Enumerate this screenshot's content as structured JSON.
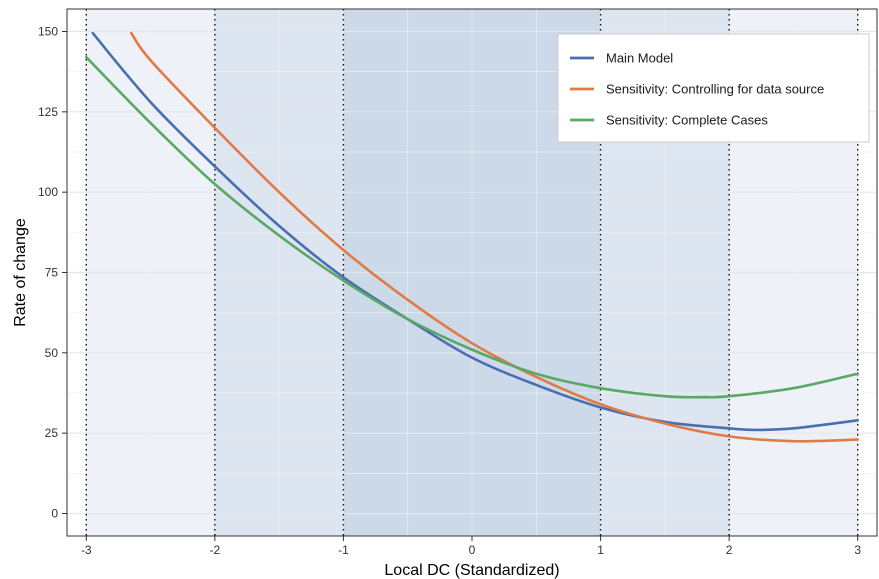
{
  "chart_data": {
    "type": "line",
    "title": "",
    "xlabel": "Local DC (Standardized)",
    "ylabel": "Rate of change",
    "xlim": [
      -3.15,
      3.15
    ],
    "ylim": [
      -7,
      157
    ],
    "x_ticks": [
      -3,
      -2,
      -1,
      0,
      1,
      2,
      3
    ],
    "x_tick_labels": [
      "-3",
      "-2",
      "-1",
      "0",
      "1",
      "2",
      "3"
    ],
    "y_ticks": [
      0,
      25,
      50,
      75,
      100,
      125,
      150
    ],
    "y_tick_labels": [
      "0",
      "25",
      "50",
      "75",
      "100",
      "125",
      "150"
    ],
    "grid": true,
    "legend_position": "top-right",
    "vertical_reference_lines": [
      -3,
      -2,
      -1,
      1,
      2,
      3
    ],
    "shaded_bands": [
      {
        "x": [
          -3,
          3
        ],
        "color": "#eef2f8"
      },
      {
        "x": [
          -2,
          2
        ],
        "color": "#dde5f0"
      },
      {
        "x": [
          -1,
          1
        ],
        "color": "#ccd9e8"
      }
    ],
    "series": [
      {
        "name": "Main Model",
        "color": "#4a6fb0",
        "x": [
          -2.95,
          -2.5,
          -2,
          -1.5,
          -1,
          -0.5,
          0,
          0.5,
          1,
          1.5,
          2,
          2.2,
          2.5,
          3
        ],
        "values": [
          149.5,
          128,
          108,
          89.5,
          73.5,
          60.5,
          48.5,
          40,
          33,
          28.5,
          26.5,
          26,
          26.5,
          29
        ]
      },
      {
        "name": "Sensitivity: Controlling for data source",
        "color": "#e07b45",
        "x": [
          -2.65,
          -2.5,
          -2,
          -1.5,
          -1,
          -0.5,
          0,
          0.5,
          1,
          1.5,
          2,
          2.5,
          3
        ],
        "values": [
          149.5,
          141,
          120,
          100,
          82,
          66.5,
          53,
          42.5,
          34,
          28,
          24,
          22.5,
          23
        ]
      },
      {
        "name": "Sensitivity: Complete Cases",
        "color": "#5aa866",
        "x": [
          -3,
          -2.5,
          -2,
          -1.5,
          -1,
          -0.5,
          0,
          0.5,
          1,
          1.5,
          1.8,
          2,
          2.5,
          3
        ],
        "values": [
          142,
          121.5,
          102.5,
          86.5,
          72.5,
          60.5,
          51,
          43.5,
          39,
          36.5,
          36.2,
          36.5,
          39,
          43.5
        ]
      }
    ]
  }
}
